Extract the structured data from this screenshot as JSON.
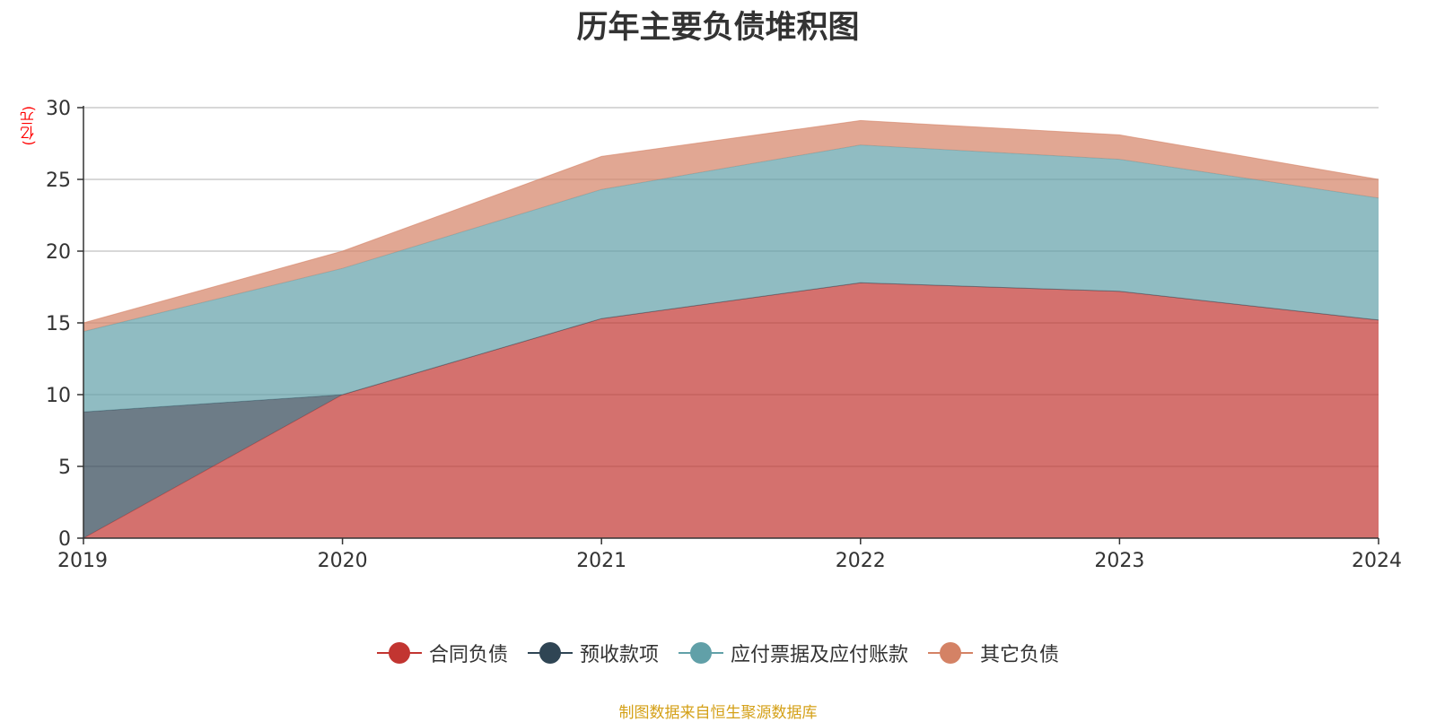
{
  "chart_data": {
    "type": "area",
    "title": "历年主要负债堆积图",
    "ylabel": "(亿元)",
    "xlabel": "",
    "x": [
      "2019",
      "2020",
      "2021",
      "2022",
      "2023",
      "2024"
    ],
    "ylim": [
      0,
      30
    ],
    "yticks": [
      0,
      5,
      10,
      15,
      20,
      25,
      30
    ],
    "grid": true,
    "stacked": true,
    "legend_position": "bottom",
    "series": [
      {
        "name": "合同负债",
        "color": "#c23531",
        "values": [
          0,
          10.0,
          15.3,
          17.8,
          17.2,
          15.2
        ]
      },
      {
        "name": "预收款项",
        "color": "#2f4554",
        "values": [
          8.8,
          0,
          0,
          0,
          0,
          0
        ]
      },
      {
        "name": "应付票据及应付账款",
        "color": "#61a0a8",
        "values": [
          5.6,
          8.8,
          9.0,
          9.6,
          9.2,
          8.5
        ]
      },
      {
        "name": "其它负债",
        "color": "#d48265",
        "values": [
          0.6,
          1.2,
          2.3,
          1.7,
          1.7,
          1.3
        ]
      }
    ]
  },
  "footer": {
    "source": "制图数据来自恒生聚源数据库"
  }
}
